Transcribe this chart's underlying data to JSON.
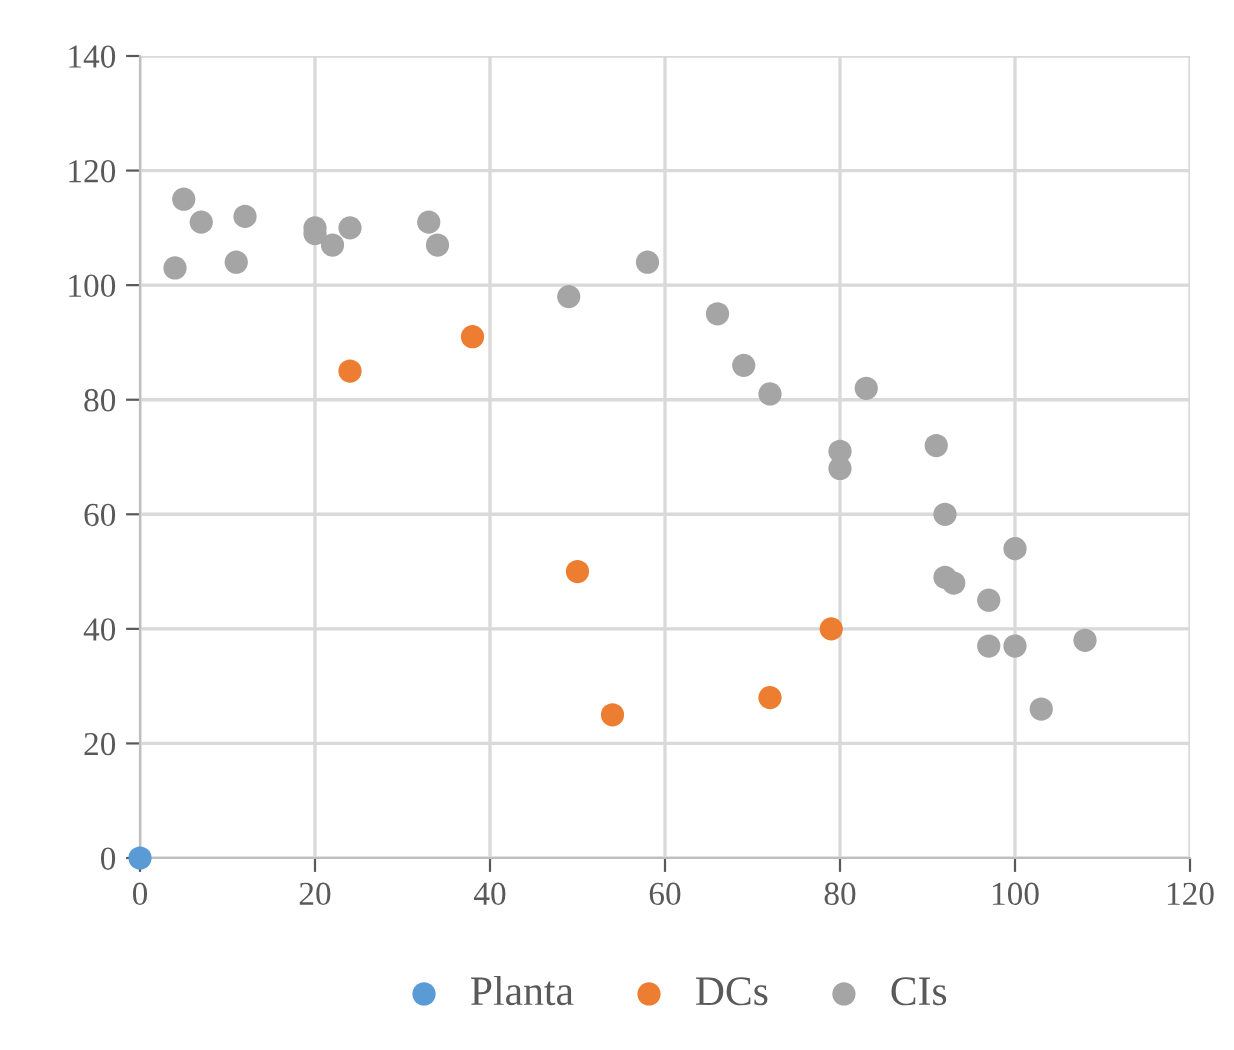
{
  "chart_data": {
    "type": "scatter",
    "xlim": [
      0,
      120
    ],
    "ylim": [
      0,
      140
    ],
    "xticks": [
      0,
      20,
      40,
      60,
      80,
      100,
      120
    ],
    "yticks": [
      0,
      20,
      40,
      60,
      80,
      100,
      120,
      140
    ],
    "grid": true,
    "legend": "bottom",
    "marker": "circle",
    "series": [
      {
        "name": "Planta",
        "color": "#5b9bd5",
        "x": [
          0
        ],
        "values": [
          0
        ]
      },
      {
        "name": "DCs",
        "color": "#ed7d31",
        "x": [
          24,
          38,
          50,
          54,
          72,
          79
        ],
        "values": [
          85,
          91,
          50,
          25,
          28,
          40
        ]
      },
      {
        "name": "CIs",
        "color": "#a5a5a5",
        "x": [
          4,
          5,
          7,
          11,
          12,
          20,
          20,
          22,
          24,
          33,
          34,
          49,
          58,
          66,
          69,
          72,
          83,
          80,
          80,
          91,
          92,
          92,
          93,
          97,
          100,
          97,
          100,
          108,
          103
        ],
        "values": [
          103,
          115,
          111,
          104,
          112,
          110,
          109,
          107,
          110,
          111,
          107,
          98,
          104,
          95,
          86,
          81,
          82,
          71,
          68,
          72,
          60,
          49,
          48,
          45,
          54,
          37,
          37,
          38,
          26
        ]
      }
    ]
  }
}
